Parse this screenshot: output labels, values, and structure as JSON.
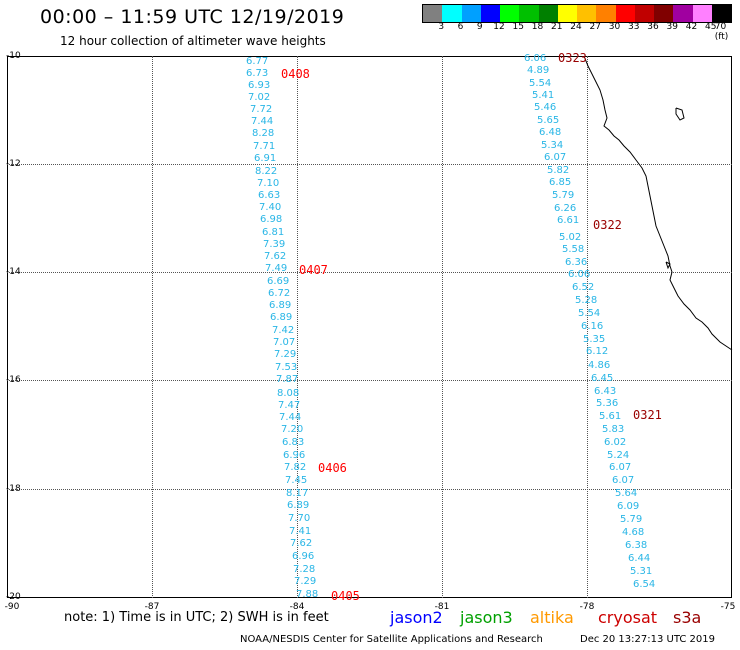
{
  "header": {
    "title": "00:00 – 11:59 UTC 12/19/2019",
    "subtitle": "12 hour collection of altimeter wave heights"
  },
  "colorbar": {
    "colors": [
      "#808080",
      "#00ffff",
      "#00a0ff",
      "#0000ff",
      "#00ff00",
      "#00c000",
      "#008000",
      "#ffff00",
      "#ffc000",
      "#ff8000",
      "#ff0000",
      "#c00000",
      "#800000",
      "#a000a0",
      "#ff80ff",
      "#000000"
    ],
    "labels": [
      "3",
      "6",
      "9",
      "12",
      "15",
      "18",
      "21",
      "24",
      "27",
      "30",
      "33",
      "36",
      "39",
      "42",
      "45",
      "70 (ft)"
    ]
  },
  "axes": {
    "y_labels": [
      "-10",
      "-12",
      "-14",
      "-16",
      "-18",
      "-20"
    ],
    "x_labels": [
      "-90",
      "-87",
      "-84",
      "-81",
      "-78",
      "-75"
    ]
  },
  "tracks": [
    {
      "values": [
        "6.77",
        "6.73",
        "6.93",
        "7.02",
        "7.72",
        "7.44",
        "8.28",
        "7.71",
        "6.91",
        "8.22",
        "7.10",
        "6.63",
        "7.40",
        "6.98",
        "6.81",
        "7.39",
        "7.62",
        "7.49",
        "6.69",
        "6.72",
        "6.89",
        "6.89",
        "7.42",
        "7.07",
        "7.29",
        "7.53",
        "7.87",
        "8.08",
        "7.47",
        "7.44",
        "7.20",
        "6.83",
        "6.96",
        "7.82",
        "7.45",
        "8.17",
        "6.89",
        "7.70",
        "7.41",
        "7.62",
        "6.96",
        "7.28",
        "7.29",
        "7.88"
      ],
      "times": [
        "0408",
        "0407",
        "0406",
        "0405"
      ]
    },
    {
      "values": [
        "6.06",
        "4.89",
        "5.54",
        "5.41",
        "5.46",
        "5.65",
        "6.48",
        "5.34",
        "6.07",
        "5.82",
        "6.85",
        "5.79",
        "6.26",
        "6.61",
        "5.02",
        "5.58",
        "6.36",
        "6.06",
        "6.52",
        "5.28",
        "5.54",
        "6.16",
        "5.35",
        "6.12",
        "4.86",
        "6.45",
        "6.43",
        "5.36",
        "5.61",
        "5.83",
        "6.02",
        "5.24",
        "6.07",
        "6.07",
        "5.64",
        "6.09",
        "5.79",
        "4.68",
        "6.38",
        "6.44",
        "5.31",
        "6.54"
      ],
      "times": [
        "0323",
        "0322",
        "0321"
      ]
    }
  ],
  "colors": {
    "values": "#2ab6e6",
    "time_left": "#ff0000",
    "time_right": "#990000"
  },
  "footer": {
    "note": "note:  1) Time is in UTC;  2) SWH is in feet",
    "legend": [
      {
        "label": "jason2",
        "color": "#0000ff"
      },
      {
        "label": "jason3",
        "color": "#00a000"
      },
      {
        "label": "altika",
        "color": "#ff9900"
      },
      {
        "label": "cryosat",
        "color": "#cc0000"
      },
      {
        "label": "s3a",
        "color": "#990000"
      }
    ],
    "credit": "NOAA/NESDIS Center for Satellite Applications and Research",
    "timestamp": "Dec 20 13:27:13 UTC 2019"
  }
}
